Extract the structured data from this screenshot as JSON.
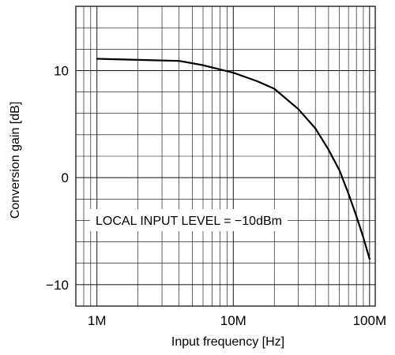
{
  "chart_data": {
    "type": "line",
    "title": "",
    "xlabel": "Input frequency [Hz]",
    "ylabel": "Conversion gain [dB]",
    "x_scale": "log",
    "xlim": [
      700000,
      110000000
    ],
    "ylim": [
      -12,
      16
    ],
    "grid": true,
    "x_ticks": [
      {
        "value": 1000000,
        "label": "1M"
      },
      {
        "value": 10000000,
        "label": "10M"
      },
      {
        "value": 100000000,
        "label": "100M"
      }
    ],
    "y_ticks": [
      {
        "value": 10,
        "label": "10"
      },
      {
        "value": 0,
        "label": "0"
      },
      {
        "value": -10,
        "label": "−10"
      }
    ],
    "annotation": "LOCAL INPUT LEVEL = −10dBm",
    "series": [
      {
        "color": "#000000",
        "x": [
          1000000,
          2000000,
          4000000,
          6000000,
          10000000,
          15000000,
          20000000,
          30000000,
          40000000,
          50000000,
          60000000,
          70000000,
          80000000,
          90000000,
          100000000
        ],
        "y": [
          11.1,
          11.0,
          10.9,
          10.5,
          9.8,
          9.0,
          8.3,
          6.4,
          4.6,
          2.6,
          0.7,
          -1.5,
          -3.6,
          -5.6,
          -7.6
        ]
      }
    ]
  }
}
